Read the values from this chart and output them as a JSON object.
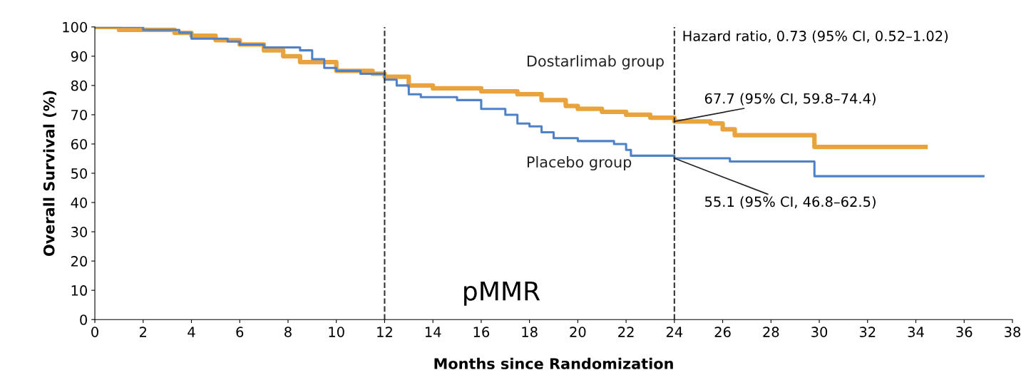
{
  "chart_data": {
    "type": "step",
    "xlabel": "Months since Randomization",
    "ylabel": "Overall Survival (%)",
    "xlim": [
      0,
      38
    ],
    "ylim": [
      0,
      100
    ],
    "xticks": [
      0,
      2,
      4,
      6,
      8,
      10,
      12,
      14,
      16,
      18,
      20,
      22,
      24,
      26,
      28,
      30,
      32,
      34,
      36,
      38
    ],
    "yticks": [
      0,
      10,
      20,
      30,
      40,
      50,
      60,
      70,
      80,
      90,
      100
    ],
    "legend": false,
    "grid": false,
    "line_style": "solid",
    "series": [
      {
        "name": "Dostarlimab group",
        "color": "#e8a33d",
        "x": [
          0,
          1,
          3.3,
          4,
          5,
          6,
          7,
          7.8,
          8.5,
          10,
          11.5,
          12,
          13,
          14,
          16,
          17.5,
          18.5,
          19.5,
          20,
          21,
          22,
          23,
          24,
          25.5,
          26,
          26.5,
          29.8,
          34.4
        ],
        "values": [
          100,
          99,
          98,
          97,
          95.5,
          94,
          92,
          90,
          88,
          85,
          84,
          83,
          80,
          79,
          78,
          77,
          75,
          73,
          72,
          71,
          70,
          69,
          67.7,
          67,
          65,
          63,
          59,
          59
        ]
      },
      {
        "name": "Placebo group",
        "color": "#4f81c7",
        "x": [
          0,
          2,
          3.5,
          4,
          5.5,
          6,
          7,
          8.5,
          9,
          9.5,
          10,
          11,
          12,
          12.5,
          13,
          13.5,
          15,
          16,
          17,
          17.5,
          18,
          18.5,
          19,
          20,
          21.5,
          22,
          22.2,
          24,
          26.3,
          29.8,
          36.8
        ],
        "values": [
          100,
          99,
          98,
          96,
          95,
          94,
          93,
          92,
          89,
          86,
          85,
          84,
          82,
          80,
          77,
          76,
          75,
          72,
          70,
          67,
          66,
          64,
          62,
          61,
          60,
          58,
          56,
          55.1,
          54,
          49,
          49
        ]
      }
    ],
    "ref_lines": [
      {
        "axis": "x",
        "value": 12,
        "line_style": "dashed",
        "color": "#333333"
      },
      {
        "axis": "x",
        "value": 24,
        "line_style": "dashed",
        "color": "#333333"
      }
    ],
    "annotations": [
      "Hazard ratio, 0.73 (95% CI, 0.52–1.02)",
      {
        "text": "67.7 (95% CI, 59.8–74.4)",
        "x": 24,
        "y": 67.7
      },
      {
        "text": "55.1 (95% CI, 46.8–62.5)",
        "x": 24,
        "y": 55.1
      },
      "pMMR"
    ]
  }
}
